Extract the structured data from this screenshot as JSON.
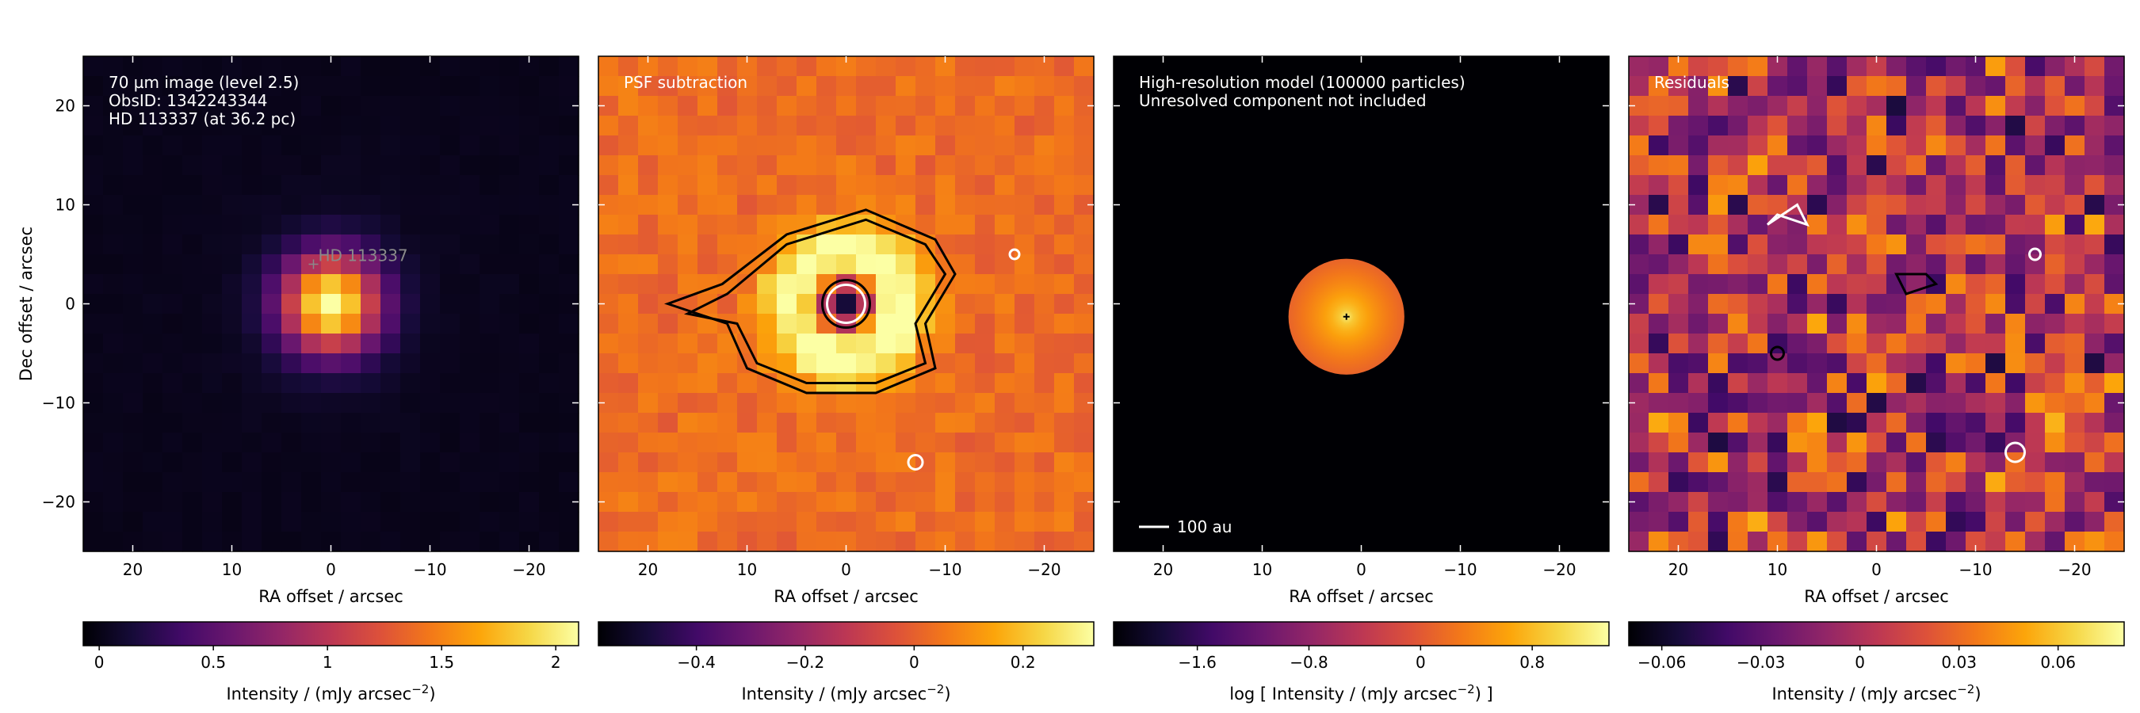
{
  "colors": {
    "colormap": "inferno",
    "frame": "#000000",
    "annotation_text": "#ffffff",
    "star_label": "#8a8a8a"
  },
  "chart_data": [
    {
      "type": "heatmap",
      "panel_text": [
        "70 µm image (level 2.5)",
        "ObsID: 1342243344",
        "HD 113337 (at 36.2 pc)"
      ],
      "star_marker": {
        "label": "HD 113337",
        "x": 0,
        "y": 0
      },
      "xlabel": "RA offset / arcsec",
      "ylabel": "Dec offset / arcsec",
      "xlim": [
        25,
        -25
      ],
      "ylim": [
        -25,
        25
      ],
      "xticks": [
        20,
        10,
        0,
        -10,
        -20
      ],
      "xtick_labels": [
        "20",
        "10",
        "0",
        "−10",
        "−20"
      ],
      "yticks": [
        20,
        10,
        0,
        -10,
        -20
      ],
      "ytick_labels": [
        "20",
        "10",
        "0",
        "−10",
        "−20"
      ],
      "pixel_size": 2,
      "colorbar": {
        "label": "Intensity / (mJy arcsec−2)",
        "label_main": "Intensity / (mJy arcsec",
        "label_sup": "−2",
        "label_end": ")",
        "range": [
          -0.07,
          2.1
        ],
        "ticks": [
          0,
          0.5,
          1,
          1.5,
          2
        ],
        "tick_labels": [
          "0",
          "0.5",
          "1",
          "1.5",
          "2"
        ]
      },
      "model": {
        "component": "gaussian_peak",
        "peak": 2.05,
        "center": [
          0,
          0
        ],
        "fwhm_arcsec": 8.0,
        "background": 0.02
      }
    },
    {
      "type": "heatmap",
      "panel_text": [
        "PSF subtraction"
      ],
      "xlabel": "RA offset / arcsec",
      "xlim": [
        25,
        -25
      ],
      "ylim": [
        -25,
        25
      ],
      "xticks": [
        20,
        10,
        0,
        -10,
        -20
      ],
      "xtick_labels": [
        "20",
        "10",
        "0",
        "−10",
        "−20"
      ],
      "pixel_size": 2,
      "colorbar": {
        "label_main": "Intensity / (mJy arcsec",
        "label_sup": "−2",
        "label_end": ")",
        "range": [
          -0.58,
          0.33
        ],
        "ticks": [
          -0.4,
          -0.2,
          0,
          0.2
        ],
        "tick_labels": [
          "−0.4",
          "−0.2",
          "0",
          "0.2"
        ]
      },
      "model": {
        "component": "ring",
        "ring_radius_arcsec": 5.5,
        "ring_peak": 0.32,
        "center_value": -0.55,
        "background": 0.03
      }
    },
    {
      "type": "heatmap",
      "panel_text": [
        "High-resolution model (100000 particles)",
        "Unresolved component not included"
      ],
      "scale_bar": "100 au",
      "xlabel": "RA offset / arcsec",
      "xlim": [
        25,
        -25
      ],
      "ylim": [
        -25,
        25
      ],
      "xticks": [
        20,
        10,
        0,
        -10,
        -20
      ],
      "xtick_labels": [
        "20",
        "10",
        "0",
        "−10",
        "−20"
      ],
      "colorbar": {
        "label_main": "log [ Intensity / (mJy arcsec",
        "label_sup": "−2",
        "label_end": ") ]",
        "range": [
          -2.2,
          1.35
        ],
        "ticks": [
          -1.6,
          -0.8,
          0,
          0.8
        ],
        "tick_labels": [
          "−1.6",
          "−0.8",
          "0",
          "0.8"
        ]
      },
      "model": {
        "component": "disc",
        "center": [
          1.5,
          -1.3
        ],
        "outer_radius_arcsec": 4.5,
        "peak_log": 1.2,
        "edge_log": 0.1
      }
    },
    {
      "type": "heatmap",
      "panel_text": [
        "Residuals"
      ],
      "xlabel": "RA offset / arcsec",
      "xlim": [
        25,
        -25
      ],
      "ylim": [
        -25,
        25
      ],
      "xticks": [
        20,
        10,
        0,
        -10,
        -20
      ],
      "xtick_labels": [
        "20",
        "10",
        "0",
        "−10",
        "−20"
      ],
      "pixel_size": 2,
      "colorbar": {
        "label_main": "Intensity / (mJy arcsec",
        "label_sup": "−2",
        "label_end": ")",
        "range": [
          -0.07,
          0.08
        ],
        "ticks": [
          -0.06,
          -0.03,
          0,
          0.03,
          0.06
        ],
        "tick_labels": [
          "−0.06",
          "−0.03",
          "0",
          "0.03",
          "0.06"
        ]
      },
      "model": {
        "component": "noise",
        "amplitude": 0.045,
        "seed": 7
      }
    }
  ]
}
